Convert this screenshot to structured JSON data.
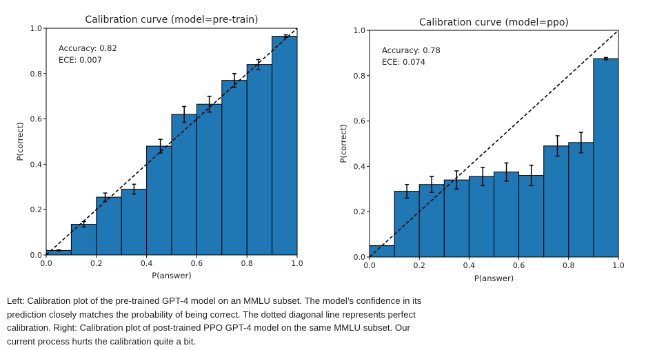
{
  "chart_data": [
    {
      "type": "bar",
      "title": "Calibration curve (model=pre-train)",
      "xlabel": "P(answer)",
      "ylabel": "P(correct)",
      "xlim": [
        0.0,
        1.0
      ],
      "ylim": [
        0.0,
        1.0
      ],
      "xticks": [
        "0.0",
        "0.2",
        "0.4",
        "0.6",
        "0.8",
        "1.0"
      ],
      "yticks": [
        "0.0",
        "0.2",
        "0.4",
        "0.6",
        "0.8",
        "1.0"
      ],
      "bin_edges": [
        0.0,
        0.1,
        0.2,
        0.3,
        0.4,
        0.5,
        0.6,
        0.7,
        0.8,
        0.9,
        1.0
      ],
      "values": [
        0.02,
        0.135,
        0.255,
        0.29,
        0.48,
        0.62,
        0.665,
        0.77,
        0.84,
        0.965
      ],
      "errors": [
        0.002,
        0.012,
        0.018,
        0.022,
        0.03,
        0.035,
        0.035,
        0.03,
        0.022,
        0.006
      ],
      "errorbar_x": [
        0.05,
        0.15,
        0.235,
        0.35,
        0.455,
        0.55,
        0.65,
        0.75,
        0.845,
        0.955
      ],
      "perfect_calibration": true,
      "annotations": [
        "Accuracy: 0.82",
        "ECE: 0.007"
      ]
    },
    {
      "type": "bar",
      "title": "Calibration curve (model=ppo)",
      "xlabel": "P(answer)",
      "ylabel": "P(correct)",
      "xlim": [
        0.0,
        1.0
      ],
      "ylim": [
        0.0,
        1.0
      ],
      "xticks": [
        "0.0",
        "0.2",
        "0.4",
        "0.6",
        "0.8",
        "1.0"
      ],
      "yticks": [
        "0.0",
        "0.2",
        "0.4",
        "0.6",
        "0.8",
        "1.0"
      ],
      "bin_edges": [
        0.0,
        0.1,
        0.2,
        0.3,
        0.4,
        0.5,
        0.6,
        0.7,
        0.8,
        0.9,
        1.0
      ],
      "values": [
        0.05,
        0.29,
        0.32,
        0.34,
        0.355,
        0.375,
        0.36,
        0.49,
        0.505,
        0.875
      ],
      "errors": [
        0.0,
        0.03,
        0.035,
        0.04,
        0.04,
        0.04,
        0.045,
        0.045,
        0.045,
        0.005
      ],
      "errorbar_x": [
        0.05,
        0.15,
        0.25,
        0.35,
        0.455,
        0.55,
        0.65,
        0.755,
        0.85,
        0.95
      ],
      "perfect_calibration": true,
      "annotations": [
        "Accuracy: 0.78",
        "ECE: 0.074"
      ]
    }
  ],
  "style": {
    "bar_color": "#1f77b4",
    "edge_color": "#000000",
    "line_color": "#000000"
  },
  "caption": "Left: Calibration plot of the pre-trained GPT-4 model on an MMLU subset. The model’s confidence in its prediction closely matches the probability of being correct. The dotted diagonal line represents perfect calibration. Right: Calibration plot of post-trained PPO GPT-4 model on the same MMLU subset. Our current process hurts the calibration quite a bit."
}
